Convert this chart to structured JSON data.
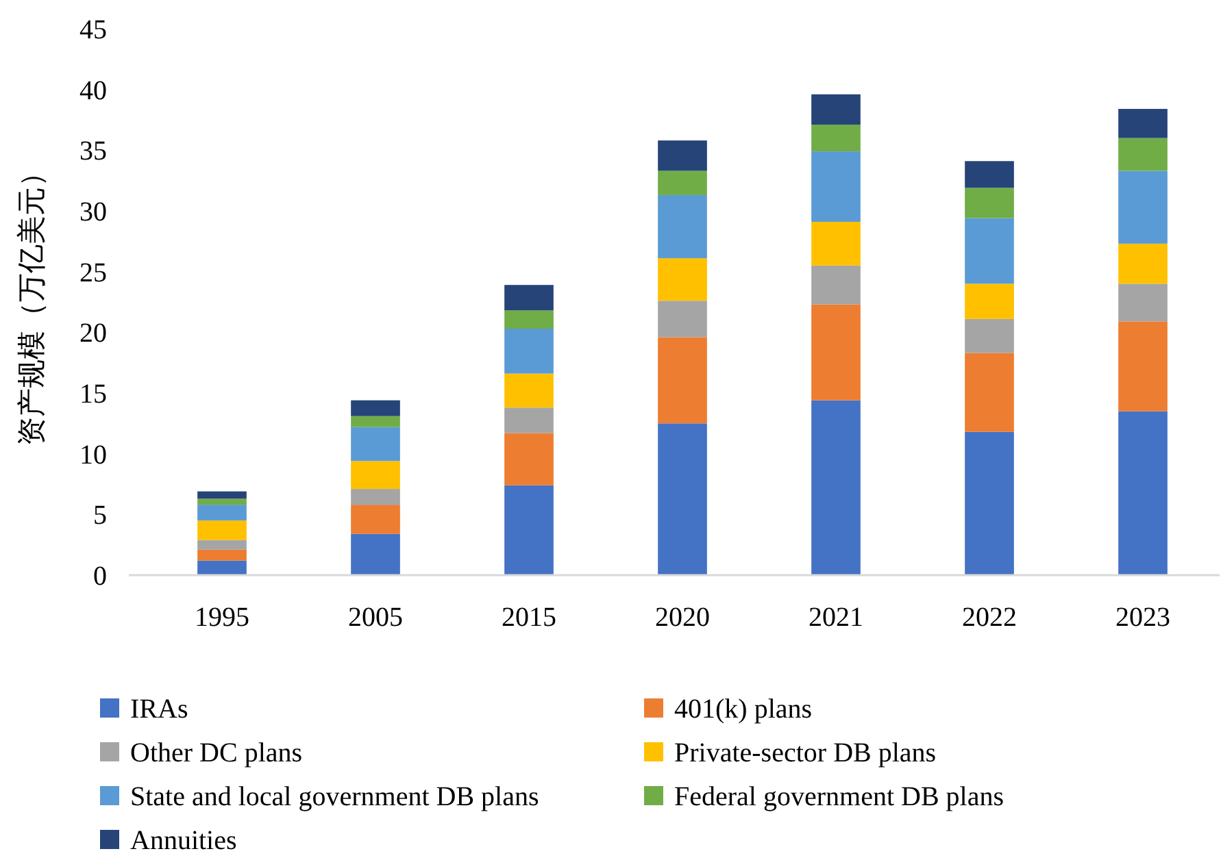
{
  "chart_data": {
    "type": "bar",
    "stacked": true,
    "ylabel": "资产规模（万亿美元）",
    "categories": [
      "1995",
      "2005",
      "2015",
      "2020",
      "2021",
      "2022",
      "2023"
    ],
    "ylim": [
      0,
      45
    ],
    "yticks": [
      0,
      5,
      10,
      15,
      20,
      25,
      30,
      35,
      40,
      45
    ],
    "grid": false,
    "legend": "bottom",
    "series": [
      {
        "name": "IRAs",
        "color": "#4472c4",
        "values": [
          1.2,
          3.4,
          7.4,
          12.5,
          14.4,
          11.8,
          13.5
        ]
      },
      {
        "name": "401(k) plans",
        "color": "#ed7d31",
        "values": [
          0.9,
          2.4,
          4.3,
          7.1,
          7.9,
          6.5,
          7.4
        ]
      },
      {
        "name": "Other DC plans",
        "color": "#a5a5a5",
        "values": [
          0.8,
          1.3,
          2.1,
          3.0,
          3.2,
          2.8,
          3.1
        ]
      },
      {
        "name": "Private-sector DB plans",
        "color": "#ffc000",
        "values": [
          1.6,
          2.3,
          2.8,
          3.5,
          3.6,
          2.9,
          3.3
        ]
      },
      {
        "name": "State and local government DB plans",
        "color": "#5b9bd5",
        "values": [
          1.3,
          2.8,
          3.7,
          5.2,
          5.8,
          5.4,
          6.0
        ]
      },
      {
        "name": "Federal government DB plans",
        "color": "#70ad47",
        "values": [
          0.5,
          0.9,
          1.5,
          2.0,
          2.2,
          2.5,
          2.7
        ]
      },
      {
        "name": "Annuities",
        "color": "#264478",
        "values": [
          0.6,
          1.3,
          2.1,
          2.5,
          2.5,
          2.2,
          2.4
        ]
      }
    ]
  }
}
